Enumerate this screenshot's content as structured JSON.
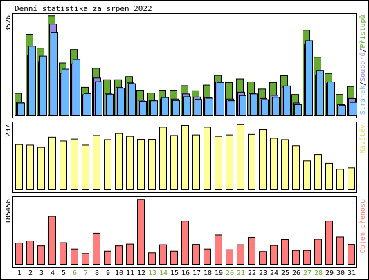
{
  "title": "Denní statistika za srpen 2022",
  "colors": {
    "hits": "#66aa33",
    "files": "#9a8ae6",
    "pages": "#6ab8ff",
    "visits": "#ffff99",
    "kbytes": "#ff7d7d",
    "weekend_label": "#66aa33",
    "weekday_label": "#000000",
    "frame": "#000000",
    "background": "#ffffff"
  },
  "legend": {
    "hits": "Přístupů",
    "files": "Souborů",
    "pages": "Stránek",
    "separator": "/",
    "visits": "Návštěv",
    "kbytes": "Objem přenosu"
  },
  "chart_data": [
    {
      "type": "bar",
      "title": "Denní statistika za srpen 2022",
      "categories": [
        "1",
        "2",
        "3",
        "4",
        "5",
        "6",
        "7",
        "8",
        "9",
        "10",
        "11",
        "12",
        "13",
        "14",
        "15",
        "16",
        "17",
        "18",
        "19",
        "20",
        "21",
        "22",
        "23",
        "24",
        "25",
        "26",
        "27",
        "28",
        "29",
        "30",
        "31"
      ],
      "weekend_days": [
        "6",
        "7",
        "13",
        "14",
        "20",
        "21",
        "27",
        "28"
      ],
      "ymax_label": "3526",
      "ylim": [
        0,
        3526
      ],
      "series": [
        {
          "name": "Přístupů",
          "key": "hits",
          "values": [
            790,
            2870,
            2380,
            3520,
            1860,
            2330,
            1000,
            1670,
            1270,
            1270,
            1380,
            900,
            800,
            900,
            900,
            1060,
            880,
            1080,
            1420,
            1170,
            1300,
            1190,
            940,
            1170,
            1410,
            750,
            3010,
            2060,
            1490,
            750,
            1030
          ]
        },
        {
          "name": "Souborů",
          "key": "files",
          "values": [
            480,
            2130,
            1910,
            3230,
            1500,
            1830,
            740,
            1330,
            770,
            1000,
            1160,
            550,
            530,
            590,
            590,
            770,
            660,
            640,
            1190,
            590,
            830,
            780,
            610,
            720,
            1010,
            450,
            2500,
            1430,
            1140,
            390,
            610
          ]
        },
        {
          "name": "Stránek",
          "key": "pages",
          "values": [
            450,
            2450,
            2100,
            2920,
            1640,
            1980,
            780,
            1200,
            760,
            970,
            1130,
            510,
            530,
            640,
            540,
            670,
            580,
            620,
            1170,
            530,
            710,
            770,
            570,
            650,
            1050,
            390,
            2640,
            1600,
            1190,
            360,
            470
          ]
        }
      ]
    },
    {
      "type": "bar",
      "categories": [
        "1",
        "2",
        "3",
        "4",
        "5",
        "6",
        "7",
        "8",
        "9",
        "10",
        "11",
        "12",
        "13",
        "14",
        "15",
        "16",
        "17",
        "18",
        "19",
        "20",
        "21",
        "22",
        "23",
        "24",
        "25",
        "26",
        "27",
        "28",
        "29",
        "30",
        "31"
      ],
      "ymax_label": "237",
      "ylim": [
        0,
        237
      ],
      "series": [
        {
          "name": "Návštěv",
          "key": "visits",
          "values": [
            163,
            161,
            153,
            190,
            176,
            183,
            161,
            196,
            181,
            203,
            193,
            182,
            182,
            226,
            196,
            232,
            198,
            226,
            193,
            198,
            235,
            200,
            217,
            186,
            181,
            159,
            104,
            127,
            95,
            74,
            79
          ]
        }
      ]
    },
    {
      "type": "bar",
      "categories": [
        "1",
        "2",
        "3",
        "4",
        "5",
        "6",
        "7",
        "8",
        "9",
        "10",
        "11",
        "12",
        "13",
        "14",
        "15",
        "16",
        "17",
        "18",
        "19",
        "20",
        "21",
        "22",
        "23",
        "24",
        "25",
        "26",
        "27",
        "28",
        "29",
        "30",
        "31"
      ],
      "ymax_label": "185456",
      "ylim": [
        0,
        185456
      ],
      "series": [
        {
          "name": "Objem přenosu",
          "key": "kbytes",
          "values": [
            61000,
            67000,
            53000,
            137000,
            62000,
            44000,
            31000,
            89000,
            38000,
            53000,
            58000,
            185000,
            33000,
            56000,
            38000,
            124000,
            57000,
            44000,
            84000,
            42000,
            56000,
            77000,
            37000,
            54000,
            71000,
            40000,
            40000,
            72000,
            124000,
            78000,
            57000
          ]
        }
      ]
    }
  ]
}
